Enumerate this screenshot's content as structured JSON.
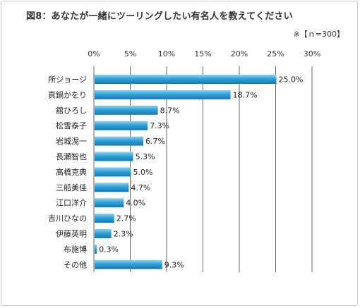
{
  "colors": {
    "bar_top": "#8fd3f2",
    "bar_mid": "#2ea2d8",
    "bar_bottom": "#1578b4",
    "grid": "#666666"
  },
  "chart_data": {
    "type": "bar",
    "orientation": "horizontal",
    "title": "図8：あなたが一緒にツーリングしたい有名人を教えてください",
    "note": "※【ｎ=300】",
    "categories": [
      "所ジョージ",
      "真鍋かをり",
      "舘ひろし",
      "松雪泰子",
      "岩城滉一",
      "長瀬智也",
      "高橋克典",
      "三船美佳",
      "江口洋介",
      "吉川ひなの",
      "伊藤英明",
      "布施博",
      "その他"
    ],
    "values": [
      25.0,
      18.7,
      8.7,
      7.3,
      6.7,
      5.3,
      5.0,
      4.7,
      4.0,
      2.7,
      2.3,
      0.3,
      9.3
    ],
    "value_labels": [
      "25.0%",
      "18.7%",
      "8.7%",
      "7.3%",
      "6.7%",
      "5.3%",
      "5.0%",
      "4.7%",
      "4.0%",
      "2.7%",
      "2.3%",
      "0.3%",
      "9.3%"
    ],
    "xticks": [
      0,
      5,
      10,
      15,
      20,
      25,
      30
    ],
    "xtick_labels": [
      "0%",
      "5%",
      "10%",
      "15%",
      "20%",
      "25%",
      "30%"
    ],
    "xlim": [
      0,
      30
    ],
    "grid": true,
    "legend": "none"
  }
}
